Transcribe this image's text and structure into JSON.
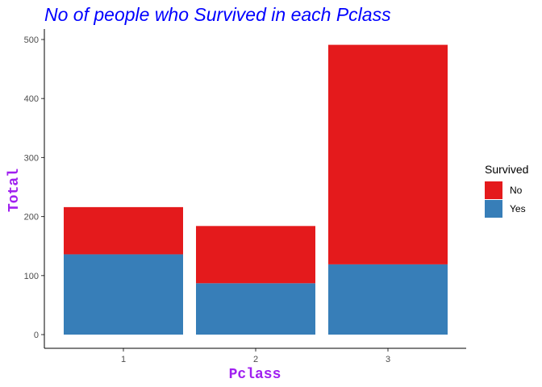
{
  "chart_data": {
    "type": "bar",
    "stacked": true,
    "title": "No of people who Survived in each Pclass",
    "xlabel": "Pclass",
    "ylabel": "Total",
    "categories": [
      "1",
      "2",
      "3"
    ],
    "series": [
      {
        "name": "No",
        "values": [
          80,
          97,
          372
        ],
        "color": "#E41A1C"
      },
      {
        "name": "Yes",
        "values": [
          136,
          87,
          119
        ],
        "color": "#377EB8"
      }
    ],
    "ylim": [
      0,
      515
    ],
    "yticks": [
      0,
      100,
      200,
      300,
      400,
      500
    ],
    "grid": false,
    "legend": {
      "title": "Survived",
      "position": "right",
      "entries": [
        "No",
        "Yes"
      ]
    },
    "colors": {
      "title": "#0000FF",
      "axis_title": "#A020F0"
    }
  }
}
